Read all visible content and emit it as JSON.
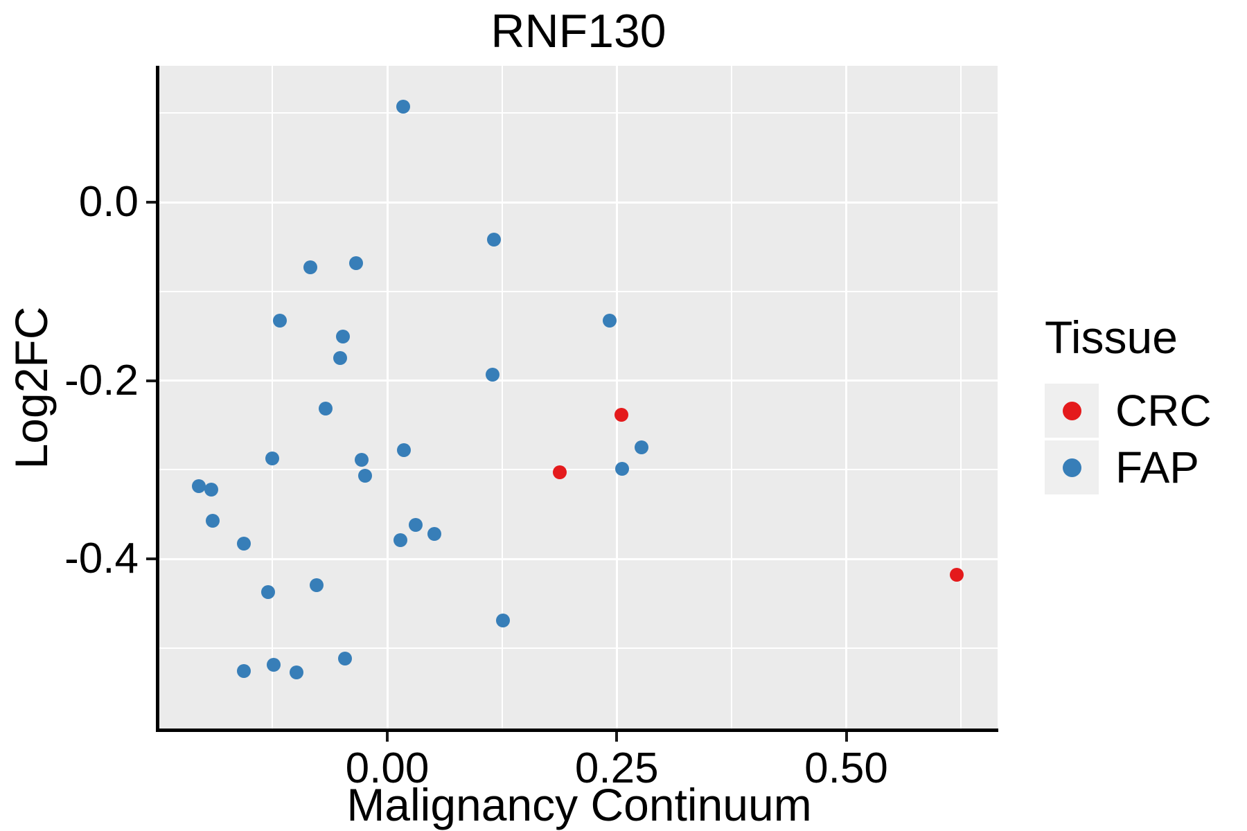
{
  "title": "RNF130",
  "axes": {
    "x": {
      "label": "Malignancy Continuum",
      "major_ticks": [
        {
          "value": 0.0,
          "label": "0.00"
        },
        {
          "value": 0.25,
          "label": "0.25"
        },
        {
          "value": 0.5,
          "label": "0.50"
        }
      ],
      "minor_ticks": [
        -0.125,
        0.125,
        0.375,
        0.625
      ]
    },
    "y": {
      "label": "Log2FC",
      "major_ticks": [
        {
          "value": 0.0,
          "label": "0.0"
        },
        {
          "value": -0.2,
          "label": "-0.2"
        },
        {
          "value": -0.4,
          "label": "-0.4"
        }
      ],
      "minor_ticks": [
        0.1,
        -0.1,
        -0.3,
        -0.5
      ]
    }
  },
  "legend": {
    "title": "Tissue",
    "entries": [
      {
        "label": "CRC",
        "color": "#E41A1C"
      },
      {
        "label": "FAP",
        "color": "#377EB8"
      }
    ]
  },
  "colors": {
    "panel_background": "#EBEBEB",
    "gridline": "#FFFFFF",
    "crc": "#E41A1C",
    "fap": "#377EB8"
  },
  "chart_data": {
    "type": "scatter",
    "title": "RNF130",
    "xlabel": "Malignancy Continuum",
    "ylabel": "Log2FC",
    "xlim": [
      -0.248,
      0.665
    ],
    "ylim": [
      -0.59,
      0.153
    ],
    "grid": true,
    "legend_position": "right",
    "series": [
      {
        "name": "CRC",
        "color": "#E41A1C",
        "points": [
          [
            0.188,
            -0.303
          ],
          [
            0.255,
            -0.238
          ],
          [
            0.62,
            -0.418
          ]
        ]
      },
      {
        "name": "FAP",
        "color": "#377EB8",
        "points": [
          [
            0.017,
            0.107
          ],
          [
            0.116,
            -0.042
          ],
          [
            -0.084,
            -0.073
          ],
          [
            -0.034,
            -0.068
          ],
          [
            -0.117,
            -0.133
          ],
          [
            -0.048,
            -0.151
          ],
          [
            -0.051,
            -0.175
          ],
          [
            0.115,
            -0.193
          ],
          [
            0.242,
            -0.133
          ],
          [
            -0.067,
            -0.231
          ],
          [
            -0.125,
            -0.287
          ],
          [
            -0.028,
            -0.289
          ],
          [
            0.018,
            -0.278
          ],
          [
            -0.024,
            -0.307
          ],
          [
            -0.205,
            -0.318
          ],
          [
            -0.192,
            -0.322
          ],
          [
            -0.19,
            -0.357
          ],
          [
            -0.156,
            -0.383
          ],
          [
            0.031,
            -0.362
          ],
          [
            0.051,
            -0.372
          ],
          [
            0.014,
            -0.379
          ],
          [
            -0.13,
            -0.437
          ],
          [
            -0.077,
            -0.429
          ],
          [
            0.126,
            -0.469
          ],
          [
            -0.046,
            -0.512
          ],
          [
            -0.156,
            -0.526
          ],
          [
            -0.124,
            -0.519
          ],
          [
            -0.099,
            -0.527
          ],
          [
            0.277,
            -0.275
          ],
          [
            0.256,
            -0.299
          ]
        ]
      }
    ]
  }
}
